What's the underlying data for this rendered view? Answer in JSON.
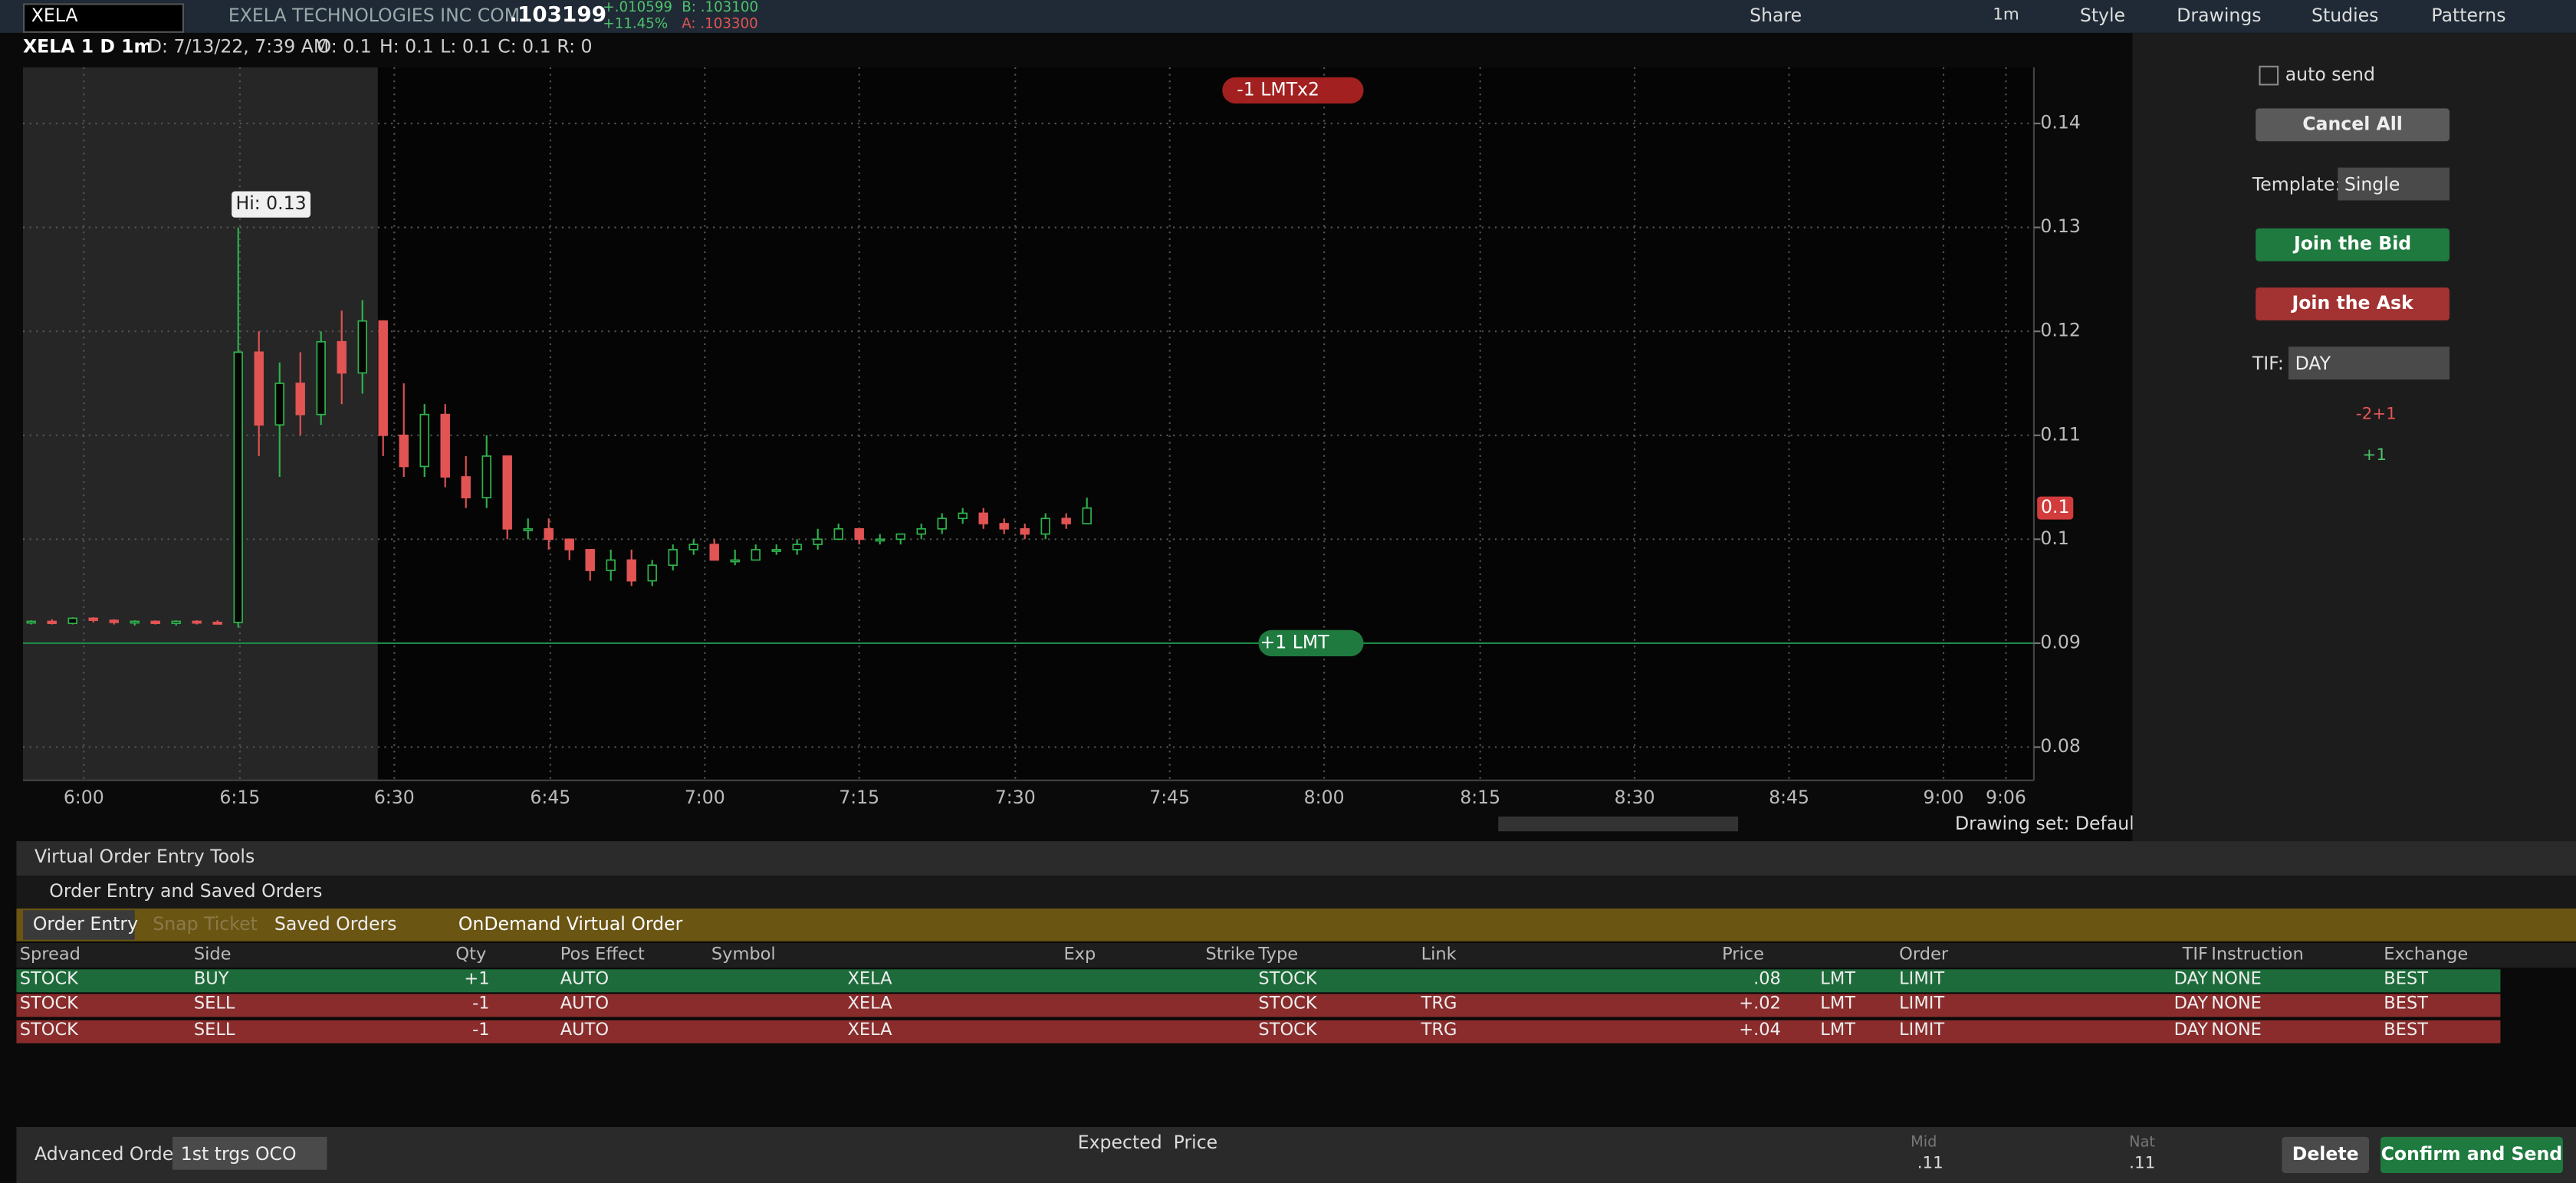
{
  "header": {
    "symbol": "XELA",
    "company": "EXELA TECHNOLOGIES INC COM",
    "last": ".103199",
    "change": "+.010599",
    "change_pct": "+11.45%",
    "bid": "B: .103100",
    "ask": "A: .103300",
    "share": "Share",
    "timeframe": "1m",
    "style": "Style",
    "drawings": "Drawings",
    "studies": "Studies",
    "patterns": "Patterns"
  },
  "chart_info": {
    "name": "XELA 1 D 1m",
    "date": "D: 7/13/22, 7:39 AM",
    "open": "O: 0.1",
    "high": "H: 0.1",
    "low": "L: 0.1",
    "close": "C: 0.1",
    "range": "R: 0"
  },
  "chart_data": {
    "type": "candlestick",
    "ylim": [
      0.0768,
      0.1454
    ],
    "yticks": [
      0.14,
      0.13,
      0.12,
      0.11,
      0.1,
      0.09,
      0.08
    ],
    "time_labels": [
      "6:00",
      "6:15",
      "6:30",
      "6:45",
      "7:00",
      "7:15",
      "7:30",
      "7:45",
      "8:00",
      "8:15",
      "8:30",
      "8:45",
      "9:00",
      "9:06"
    ],
    "ohlc": [
      [
        0.092,
        0.0922,
        0.0918,
        0.0921
      ],
      [
        0.0921,
        0.0923,
        0.0918,
        0.0919
      ],
      [
        0.0919,
        0.0925,
        0.0918,
        0.0924
      ],
      [
        0.0924,
        0.0925,
        0.092,
        0.0922
      ],
      [
        0.0922,
        0.0923,
        0.0918,
        0.092
      ],
      [
        0.092,
        0.0922,
        0.0917,
        0.0921
      ],
      [
        0.0921,
        0.0922,
        0.0918,
        0.0919
      ],
      [
        0.0919,
        0.0922,
        0.0917,
        0.0921
      ],
      [
        0.0921,
        0.0922,
        0.0918,
        0.092
      ],
      [
        0.092,
        0.0922,
        0.0918,
        0.0919
      ],
      [
        0.092,
        0.13,
        0.0915,
        0.118
      ],
      [
        0.118,
        0.12,
        0.108,
        0.111
      ],
      [
        0.111,
        0.117,
        0.106,
        0.115
      ],
      [
        0.115,
        0.118,
        0.11,
        0.112
      ],
      [
        0.112,
        0.12,
        0.111,
        0.119
      ],
      [
        0.119,
        0.122,
        0.113,
        0.116
      ],
      [
        0.116,
        0.123,
        0.114,
        0.121
      ],
      [
        0.121,
        0.121,
        0.108,
        0.11
      ],
      [
        0.11,
        0.115,
        0.106,
        0.107
      ],
      [
        0.107,
        0.113,
        0.106,
        0.112
      ],
      [
        0.112,
        0.113,
        0.105,
        0.106
      ],
      [
        0.106,
        0.108,
        0.103,
        0.104
      ],
      [
        0.104,
        0.11,
        0.103,
        0.108
      ],
      [
        0.108,
        0.108,
        0.1,
        0.101
      ],
      [
        0.101,
        0.102,
        0.1,
        0.101
      ],
      [
        0.101,
        0.102,
        0.099,
        0.1
      ],
      [
        0.1,
        0.1,
        0.098,
        0.099
      ],
      [
        0.099,
        0.099,
        0.096,
        0.097
      ],
      [
        0.097,
        0.099,
        0.096,
        0.098
      ],
      [
        0.098,
        0.099,
        0.0955,
        0.096
      ],
      [
        0.096,
        0.098,
        0.0955,
        0.0975
      ],
      [
        0.0975,
        0.0995,
        0.097,
        0.099
      ],
      [
        0.099,
        0.1,
        0.0985,
        0.0995
      ],
      [
        0.0995,
        0.1,
        0.098,
        0.098
      ],
      [
        0.098,
        0.099,
        0.0975,
        0.098
      ],
      [
        0.098,
        0.0995,
        0.098,
        0.099
      ],
      [
        0.099,
        0.0995,
        0.0985,
        0.099
      ],
      [
        0.099,
        0.1,
        0.0985,
        0.0995
      ],
      [
        0.0995,
        0.101,
        0.099,
        0.1
      ],
      [
        0.1,
        0.1015,
        0.1,
        0.101
      ],
      [
        0.101,
        0.101,
        0.0995,
        0.1
      ],
      [
        0.1,
        0.1005,
        0.0995,
        0.1
      ],
      [
        0.1,
        0.1005,
        0.0995,
        0.1005
      ],
      [
        0.1005,
        0.1015,
        0.1,
        0.101
      ],
      [
        0.101,
        0.1025,
        0.1005,
        0.102
      ],
      [
        0.102,
        0.103,
        0.1015,
        0.1025
      ],
      [
        0.1025,
        0.103,
        0.101,
        0.1015
      ],
      [
        0.1015,
        0.102,
        0.1005,
        0.101
      ],
      [
        0.101,
        0.1015,
        0.1,
        0.1005
      ],
      [
        0.1005,
        0.1025,
        0.1,
        0.102
      ],
      [
        0.102,
        0.1025,
        0.101,
        0.1015
      ],
      [
        0.1015,
        0.104,
        0.1015,
        0.103
      ]
    ],
    "up_color": "#2fb24c",
    "down_color": "#e25454",
    "order_line": 0.09,
    "hi_label": "Hi: 0.13",
    "sell_order": "-1 LMTx2",
    "buy_order": "+1 LMT",
    "last_price_label": "0.1",
    "drawing_set": "Drawing set: Default"
  },
  "side_panel": {
    "auto_send": "auto send",
    "cancel_all": "Cancel All",
    "template_label": "Template:",
    "template": "Single",
    "join_bid": "Join the Bid",
    "join_ask": "Join the Ask",
    "tif_label": "TIF:",
    "tif": "DAY",
    "position_1": "-2+1",
    "position_2": "+1"
  },
  "order_panel": {
    "title": "Virtual Order Entry Tools",
    "section": "Order Entry and Saved Orders",
    "tabs": [
      "Order Entry",
      "Snap Ticket",
      "Saved Orders"
    ],
    "ondemand": "OnDemand Virtual Order",
    "columns": [
      "Spread",
      "Side",
      "Qty",
      "Pos Effect",
      "Symbol",
      "Exp",
      "Strike",
      "Type",
      "Link",
      "Price",
      "Order",
      "TIF",
      "Instruction",
      "Exchange"
    ],
    "rows": [
      {
        "spread": "STOCK",
        "side": "BUY",
        "qty": "+1",
        "pos_effect": "AUTO",
        "symbol": "XELA",
        "type": "STOCK",
        "price": ".08",
        "price_type": "LMT",
        "order": "LIMIT",
        "tif": "DAY",
        "instruction": "NONE",
        "exchange": "BEST"
      },
      {
        "spread": "STOCK",
        "side": "SELL",
        "qty": "-1",
        "pos_effect": "AUTO",
        "symbol": "XELA",
        "type": "STOCK",
        "link": "TRG",
        "price": "+.02",
        "price_type": "LMT",
        "order": "LIMIT",
        "tif": "DAY",
        "instruction": "NONE",
        "exchange": "BEST"
      },
      {
        "spread": "STOCK",
        "side": "SELL",
        "qty": "-1",
        "pos_effect": "AUTO",
        "symbol": "XELA",
        "type": "STOCK",
        "link": "TRG",
        "price": "+.04",
        "price_type": "LMT",
        "order": "LIMIT",
        "tif": "DAY",
        "instruction": "NONE",
        "exchange": "BEST"
      }
    ],
    "advanced_label": "Advanced Order:",
    "advanced": "1st trgs OCO",
    "expected": "Expected  Price",
    "mid_label": "Mid",
    "mid": ".11",
    "nat_label": "Nat",
    "nat": ".11",
    "delete": "Delete",
    "confirm": "Confirm and Send"
  }
}
